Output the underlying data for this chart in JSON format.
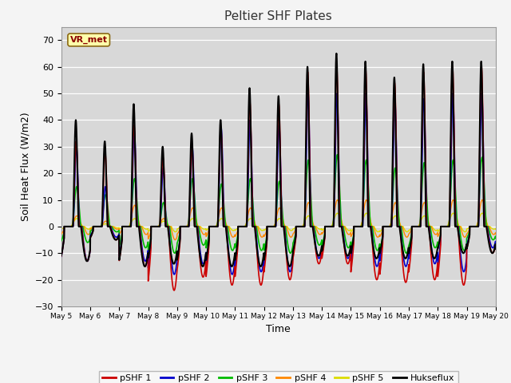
{
  "title": "Peltier SHF Plates",
  "xlabel": "Time",
  "ylabel": "Soil Heat Flux (W/m2)",
  "ylim": [
    -30,
    75
  ],
  "yticks": [
    -30,
    -20,
    -10,
    0,
    10,
    20,
    30,
    40,
    50,
    60,
    70
  ],
  "plot_bg_color": "#d8d8d8",
  "fig_bg_color": "#f4f4f4",
  "series_colors": {
    "pSHF 1": "#cc0000",
    "pSHF 2": "#0000cc",
    "pSHF 3": "#00bb00",
    "pSHF 4": "#ff8800",
    "pSHF 5": "#dddd00",
    "Hukseflux": "#000000"
  },
  "xtick_labels": [
    "May 5",
    "May 6",
    "May 7",
    "May 8",
    "May 9",
    "May 10",
    "May 11",
    "May 12",
    "May 13",
    "May 14",
    "May 15",
    "May 16",
    "May 17",
    "May 18",
    "May 19",
    "May 20"
  ],
  "vr_met_label": "VR_met",
  "annotation_color": "#8B0000",
  "annotation_bg": "#ffffaa",
  "grid_color": "#c0c0c0"
}
